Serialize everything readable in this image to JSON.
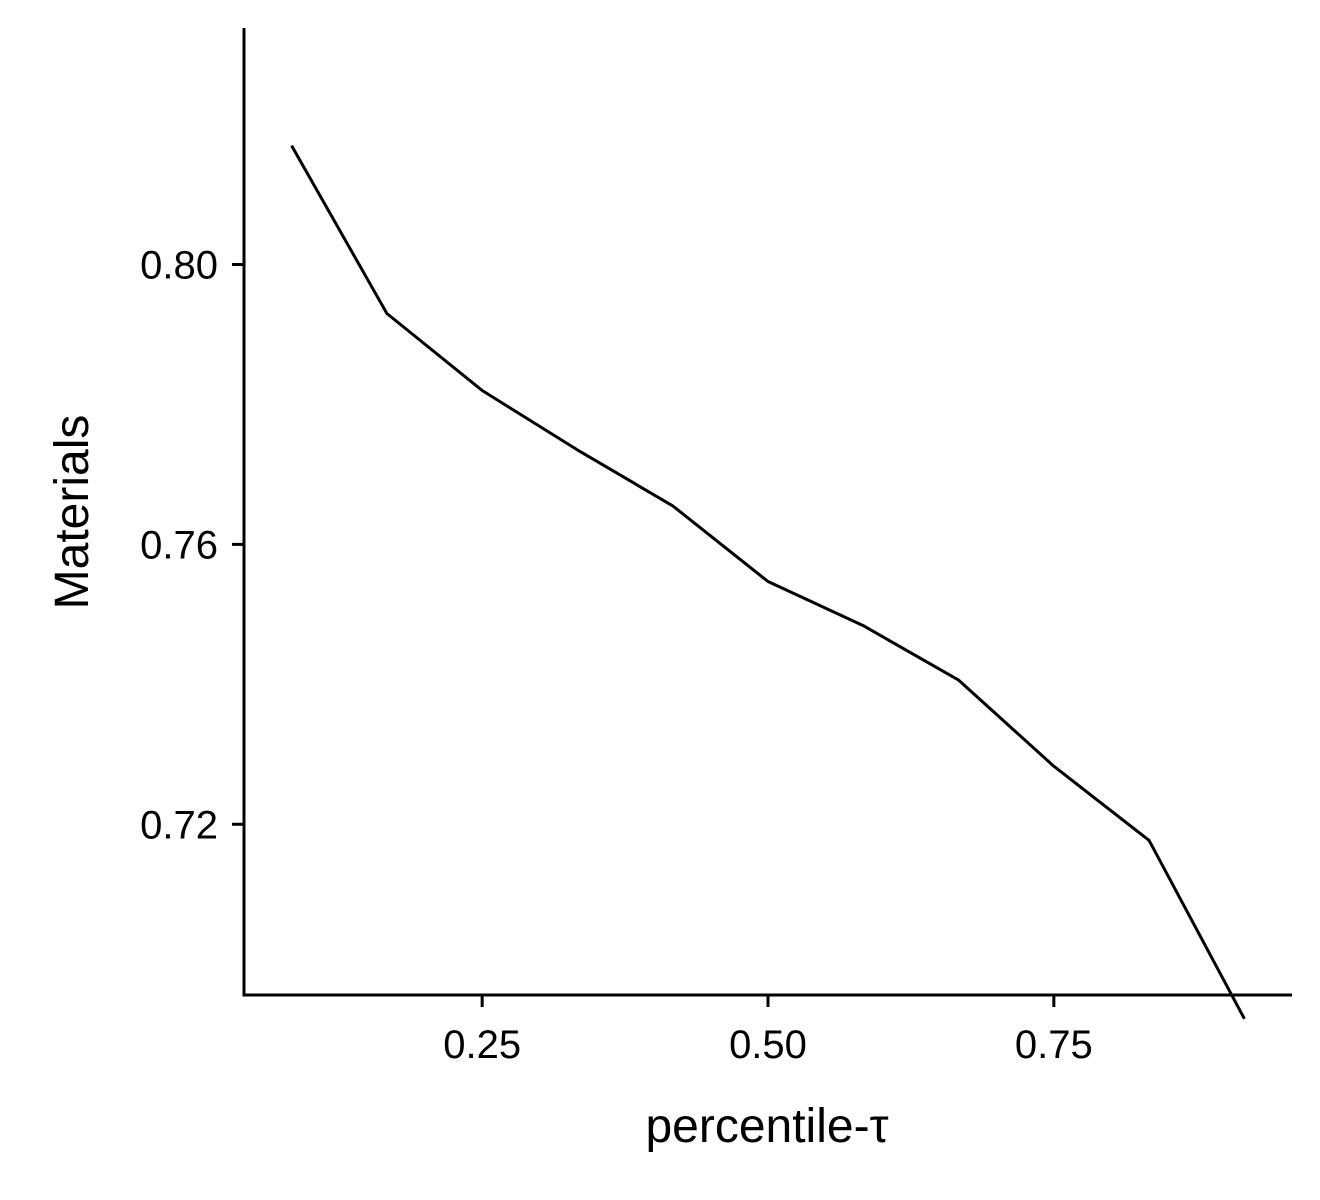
{
  "chart_data": {
    "type": "line",
    "title": "",
    "xlabel": "percentile-τ",
    "ylabel": "Materials",
    "xlim": [
      0.0417,
      0.9583
    ],
    "ylim": [
      0.6956,
      0.8338
    ],
    "x_ticks": [
      0.25,
      0.5,
      0.75
    ],
    "x_tick_labels": [
      "0.25",
      "0.50",
      "0.75"
    ],
    "y_ticks": [
      0.72,
      0.76,
      0.8
    ],
    "y_tick_labels": [
      "0.72",
      "0.76",
      "0.80"
    ],
    "grid": false,
    "legend": "none",
    "series": [
      {
        "color": "#000000",
        "x": [
          0.0833,
          0.1667,
          0.25,
          0.3333,
          0.4167,
          0.5,
          0.5833,
          0.6667,
          0.75,
          0.8333,
          0.9167
        ],
        "y": [
          0.817,
          0.793,
          0.782,
          0.7735,
          0.7655,
          0.7547,
          0.7484,
          0.7406,
          0.7283,
          0.7177,
          0.6922
        ]
      }
    ]
  }
}
